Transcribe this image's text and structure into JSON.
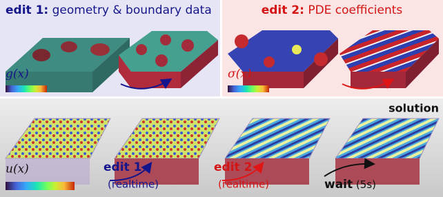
{
  "panels": {
    "top_left": {
      "title_bold": "edit 1:",
      "title": "geometry & boundary data",
      "label": "g(x)"
    },
    "top_right": {
      "title_bold": "edit 2:",
      "title": "PDE coefficients",
      "label": "σ(x)"
    },
    "bottom": {
      "label": "u(x)",
      "corner": "solution",
      "steps": [
        {
          "bold": "edit 1",
          "note": "(realtime)"
        },
        {
          "bold": "edit 2",
          "note": "(realtime)"
        },
        {
          "bold": "wait",
          "note": "(5s)"
        }
      ]
    }
  }
}
